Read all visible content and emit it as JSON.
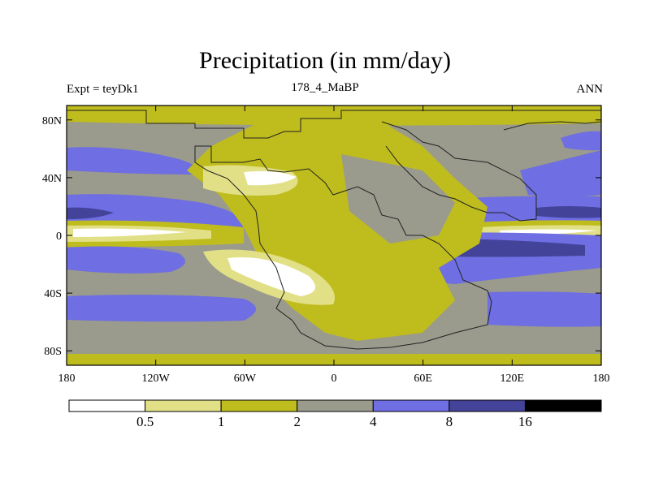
{
  "title": "Precipitation (in mm/day)",
  "subtitle_left": "Expt = teyDk1",
  "subtitle_center": "178_4_MaBP",
  "subtitle_right": "ANN",
  "map": {
    "lon_range": [
      -180,
      180
    ],
    "lat_range": [
      -90,
      90
    ],
    "lat_ticks": [
      {
        "value": 80,
        "label": "80N"
      },
      {
        "value": 40,
        "label": "40N"
      },
      {
        "value": 0,
        "label": "0"
      },
      {
        "value": -40,
        "label": "40S"
      },
      {
        "value": -80,
        "label": "80S"
      }
    ],
    "lon_ticks": [
      {
        "value": -180,
        "label": "180"
      },
      {
        "value": -120,
        "label": "120W"
      },
      {
        "value": -60,
        "label": "60W"
      },
      {
        "value": 0,
        "label": "0"
      },
      {
        "value": 60,
        "label": "60E"
      },
      {
        "value": 120,
        "label": "120E"
      },
      {
        "value": 180,
        "label": "180"
      }
    ]
  },
  "colorbar": {
    "levels": [
      "0.5",
      "1",
      "2",
      "4",
      "8",
      "16"
    ],
    "colors": [
      "#ffffff",
      "#e2e086",
      "#bfbc1d",
      "#9a9a8d",
      "#6f6ee2",
      "#43439a",
      "#000000"
    ]
  }
}
